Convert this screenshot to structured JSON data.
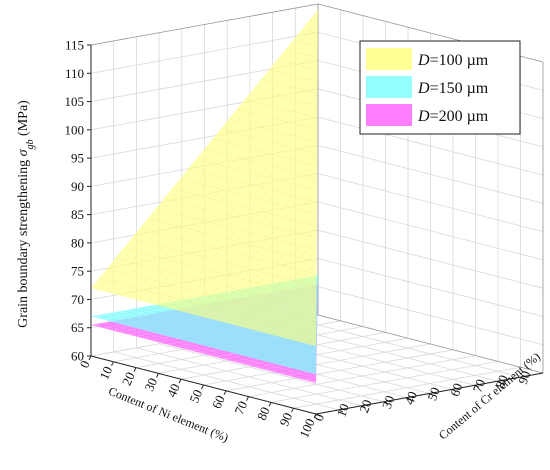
{
  "chart_data": {
    "type": "surface3d",
    "zlabel_main": "Grain boundary strengthening ",
    "zlabel_symbol": "σ",
    "zlabel_sub": "gb",
    "zlabel_unit": " (MPa)",
    "xlabel": "Content of Ni element (%)",
    "ylabel": "Content of Cr element (%)",
    "x_ticks": [
      "0",
      "10",
      "20",
      "30",
      "40",
      "50",
      "60",
      "70",
      "80",
      "90",
      "100"
    ],
    "y_ticks": [
      "0",
      "10",
      "20",
      "30",
      "40",
      "50",
      "60",
      "70",
      "80",
      "90"
    ],
    "z_ticks": [
      "60",
      "65",
      "70",
      "75",
      "80",
      "85",
      "90",
      "95",
      "100",
      "105",
      "110",
      "115"
    ],
    "xlim": [
      0,
      100
    ],
    "ylim": [
      0,
      100
    ],
    "zlim": [
      60,
      115
    ],
    "grid": true,
    "legend_position": "top-right",
    "series": [
      {
        "name_italic": "D",
        "name_rest": "=100 µm",
        "color": "#ffff80",
        "vertices": [
          {
            "x": 0,
            "y": 0,
            "z": 72
          },
          {
            "x": 100,
            "y": 0,
            "z": 72
          },
          {
            "x": 0,
            "y": 100,
            "z": 114
          }
        ]
      },
      {
        "name_italic": "D",
        "name_rest": "=150 µm",
        "color": "#80ffff",
        "vertices": [
          {
            "x": 0,
            "y": 0,
            "z": 67
          },
          {
            "x": 100,
            "y": 0,
            "z": 67
          },
          {
            "x": 0,
            "y": 100,
            "z": 67
          }
        ]
      },
      {
        "name_italic": "D",
        "name_rest": "=200 µm",
        "color": "#ff66ff",
        "vertices": [
          {
            "x": 0,
            "y": 0,
            "z": 65.5
          },
          {
            "x": 100,
            "y": 0,
            "z": 65.5
          },
          {
            "x": 0,
            "y": 100,
            "z": 65.5
          }
        ]
      }
    ]
  }
}
